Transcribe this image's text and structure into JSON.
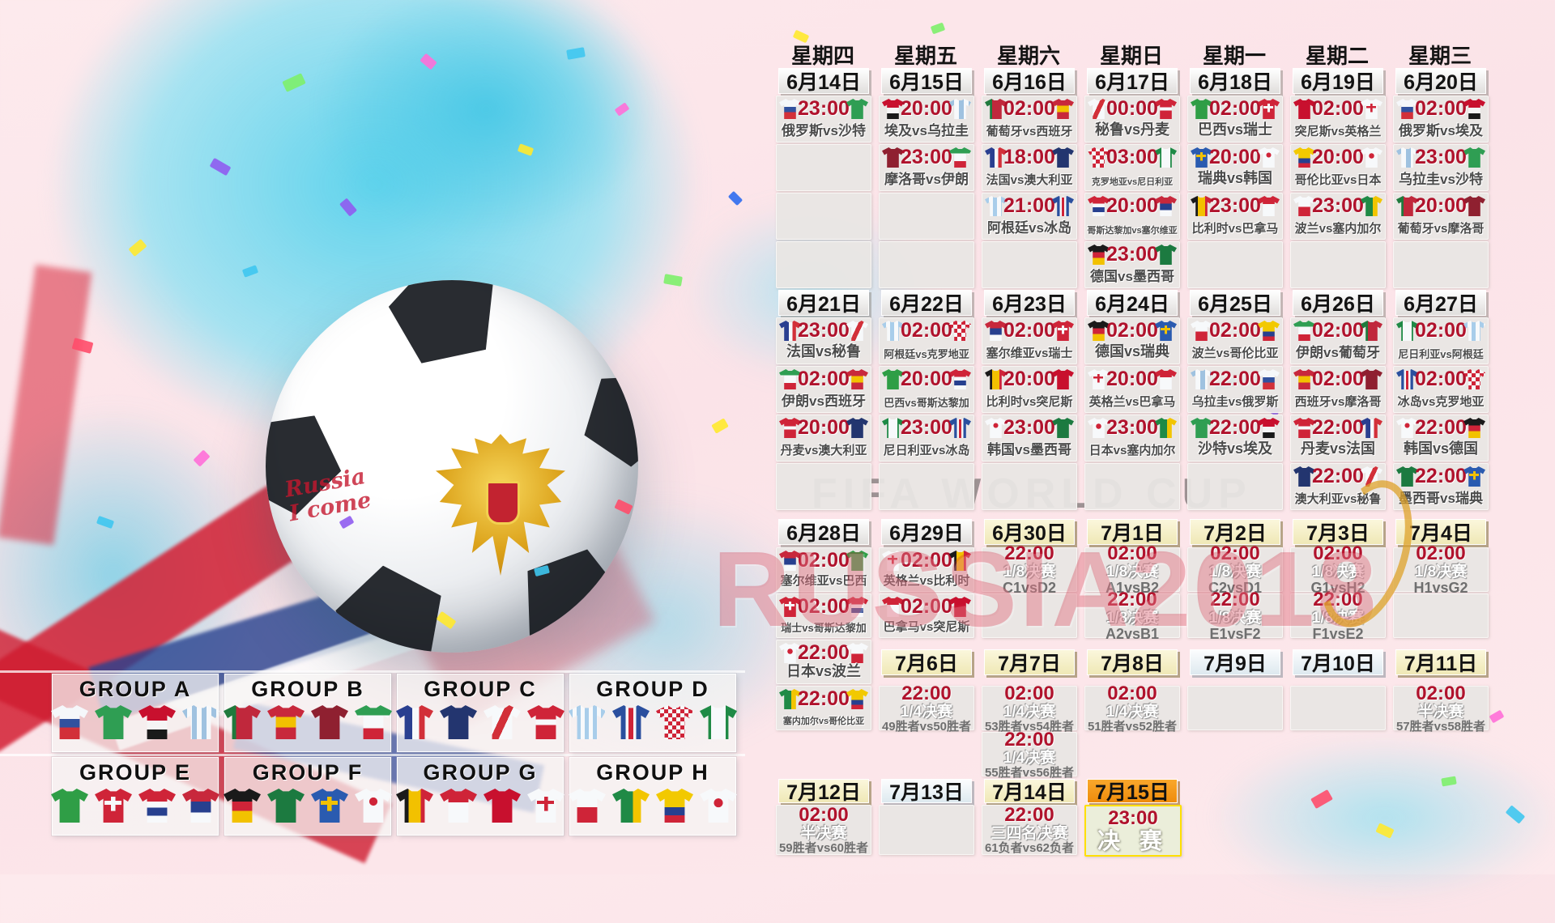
{
  "watermark": {
    "fifa": "FIFA WORLD CUP",
    "russia": "RUSSIA2018"
  },
  "artwork": {
    "ball_text_line1": "Russia",
    "ball_text_line2": "I come"
  },
  "colors": {
    "time_red": "#b0122c",
    "cell_bg": "#e9e6e3",
    "date_yellow": "#f4edc0",
    "date_final_orange": "#f39a1c",
    "confetti_palette": [
      "#ff6fd8",
      "#8f5cf0",
      "#3fc6f0",
      "#ffe92e",
      "#7df06a",
      "#ff4d6a",
      "#2e6cf0",
      "#ff9d2e"
    ]
  },
  "jerseys": {
    "russia": "linear-gradient(180deg,#f5f7fa 0 40%,#31519e 40% 66%,#d23039 66%)",
    "saudi": "#2f9e53",
    "egypt": "linear-gradient(180deg,#c8102e 0 45%,#f5f5f5 45% 72%,#1a1a1a 72%)",
    "uruguay": "repeating-linear-gradient(90deg,#9fc2e0 0 6px,#f7f9fb 6px 12px)",
    "portugal": "linear-gradient(90deg,#1f7a3d 0 34%,#c0283c 34%)",
    "spain": "linear-gradient(180deg,#c8283c 0 34%,#f2c100 34% 66%,#c8283c 66%)",
    "morocco": "#8f2030",
    "iran": "linear-gradient(180deg,#2f9e53 0 30%,#f7f9fb 30% 68%,#cf2438 68%)",
    "france": "linear-gradient(90deg,#2a3f90 0 44%,#f7f9fb 44% 62%,#d23039 62%)",
    "australia": "#23356f",
    "peru": "linear-gradient(115deg,#f7f9fb 0 42%,#d23039 42% 58%,#f7f9fb 58%)",
    "denmark": "linear-gradient(180deg,#cf2438 0 42%,#f7f9fb 42% 58%,#cf2438 58%)",
    "argentina": "repeating-linear-gradient(90deg,#a8cdea 0 5px,#f7f9fb 5px 10px)",
    "iceland": "linear-gradient(90deg,#2a4f9e 0 36%,#f7f9fb 36% 44%,#cf2438 44% 56%,#f7f9fb 56% 64%,#2a4f9e 64%)",
    "croatia": "conic-gradient(#cf2438 25%,#f7f9fb 0 50%,#cf2438 0 75%,#f7f9fb 0) 0 0/10px 10px",
    "nigeria": "linear-gradient(90deg,#1f8a46 0 30%,#f7f9fb 30% 70%,#1f8a46 70%)",
    "brazil": "#2f9e46",
    "switzerland": "linear-gradient(#f7f9fb,#f7f9fb) 50% 40%/46% 12% no-repeat,linear-gradient(#f7f9fb,#f7f9fb) 50% 40%/12% 42% no-repeat,#cf2438",
    "costarica": "linear-gradient(180deg,#cf2438 0 38%,#f7f9fb 38% 56%,#27408f 56% 80%,#f7f9fb 80%)",
    "serbia": "linear-gradient(180deg,#c8283c 0 38%,#27408f 38% 70%,#f7f9fb 70%)",
    "germany": "linear-gradient(180deg,#1a1a1a 0 38%,#cf2438 38% 66%,#f2c100 66%)",
    "mexico": "#1c7a40",
    "sweden": "linear-gradient(#f2c100,#f2c100) 50% 40%/46% 12% no-repeat,linear-gradient(#f2c100,#f2c100) 50% 40%/12% 42% no-repeat,#2a5bb0",
    "korea": "radial-gradient(circle at 50% 38%,#cf2438 0 14%,rgba(0,0,0,0) 15%),#f7f9fb",
    "belgium": "linear-gradient(90deg,#1a1a1a 0 34%,#f2c100 34% 66%,#cf2438 66%)",
    "panama": "linear-gradient(180deg,#cf2438 0 40%,#f7f9fb 40%)",
    "tunisia": "#c8102e",
    "england": "linear-gradient(#cf2438,#cf2438) 50% 40%/46% 10% no-repeat,linear-gradient(#cf2438,#cf2438) 50% 40%/10% 42% no-repeat,#f7f9fb",
    "poland": "linear-gradient(180deg,#f7f9fb 0 55%,#cf2438 55%)",
    "senegal": "linear-gradient(90deg,#1f8a46 0 55%,#f2c500 55%)",
    "colombia": "linear-gradient(180deg,#f2c900 0 55%,#27408f 55% 78%,#cf2438 78%)",
    "japan": "radial-gradient(circle at 50% 42%,#cf2438 0 16%,rgba(0,0,0,0) 17%),#f7f9fb"
  },
  "groups": [
    {
      "label": "GROUP A",
      "teams": [
        "russia",
        "saudi",
        "egypt",
        "uruguay"
      ]
    },
    {
      "label": "GROUP B",
      "teams": [
        "portugal",
        "spain",
        "morocco",
        "iran"
      ]
    },
    {
      "label": "GROUP C",
      "teams": [
        "france",
        "australia",
        "peru",
        "denmark"
      ]
    },
    {
      "label": "GROUP D",
      "teams": [
        "argentina",
        "iceland",
        "croatia",
        "nigeria"
      ]
    },
    {
      "label": "GROUP E",
      "teams": [
        "brazil",
        "switzerland",
        "costarica",
        "serbia"
      ]
    },
    {
      "label": "GROUP F",
      "teams": [
        "germany",
        "mexico",
        "sweden",
        "korea"
      ]
    },
    {
      "label": "GROUP G",
      "teams": [
        "belgium",
        "panama",
        "tunisia",
        "england"
      ]
    },
    {
      "label": "GROUP H",
      "teams": [
        "poland",
        "senegal",
        "colombia",
        "japan"
      ]
    }
  ],
  "calendar": {
    "weekdays": [
      "星期四",
      "星期五",
      "星期六",
      "星期日",
      "星期一",
      "星期二",
      "星期三"
    ],
    "rows": [
      {
        "kind": "weekdays"
      },
      {
        "kind": "dates",
        "cells": [
          {
            "label": "6月14日",
            "hl": "gray"
          },
          {
            "label": "6月15日",
            "hl": "gray"
          },
          {
            "label": "6月16日",
            "hl": "gray"
          },
          {
            "label": "6月17日",
            "hl": "gray"
          },
          {
            "label": "6月18日",
            "hl": "gray"
          },
          {
            "label": "6月19日",
            "hl": "gray"
          },
          {
            "label": "6月20日",
            "hl": "gray"
          }
        ]
      },
      {
        "kind": "cells",
        "cells": [
          {
            "t": "m",
            "time": "23:00",
            "teams": "俄罗斯vs沙特",
            "h": "russia",
            "a": "saudi"
          },
          {
            "t": "m",
            "time": "20:00",
            "teams": "埃及vs乌拉圭",
            "h": "egypt",
            "a": "uruguay"
          },
          {
            "t": "m",
            "time": "02:00",
            "teams": "葡萄牙vs西班牙",
            "h": "portugal",
            "a": "spain"
          },
          {
            "t": "m",
            "time": "00:00",
            "teams": "秘鲁vs丹麦",
            "h": "peru",
            "a": "denmark"
          },
          {
            "t": "m",
            "time": "02:00",
            "teams": "巴西vs瑞士",
            "h": "brazil",
            "a": "switzerland"
          },
          {
            "t": "m",
            "time": "02:00",
            "teams": "突尼斯vs英格兰",
            "h": "tunisia",
            "a": "england"
          },
          {
            "t": "m",
            "time": "02:00",
            "teams": "俄罗斯vs埃及",
            "h": "russia",
            "a": "egypt"
          }
        ]
      },
      {
        "kind": "cells",
        "cells": [
          {
            "t": "e"
          },
          {
            "t": "m",
            "time": "23:00",
            "teams": "摩洛哥vs伊朗",
            "h": "morocco",
            "a": "iran"
          },
          {
            "t": "m",
            "time": "18:00",
            "teams": "法国vs澳大利亚",
            "h": "france",
            "a": "australia"
          },
          {
            "t": "m",
            "time": "03:00",
            "teams": "克罗地亚vs尼日利亚",
            "h": "croatia",
            "a": "nigeria"
          },
          {
            "t": "m",
            "time": "20:00",
            "teams": "瑞典vs韩国",
            "h": "sweden",
            "a": "korea"
          },
          {
            "t": "m",
            "time": "20:00",
            "teams": "哥伦比亚vs日本",
            "h": "colombia",
            "a": "japan"
          },
          {
            "t": "m",
            "time": "23:00",
            "teams": "乌拉圭vs沙特",
            "h": "uruguay",
            "a": "saudi"
          }
        ]
      },
      {
        "kind": "cells",
        "cells": [
          {
            "t": "e"
          },
          {
            "t": "e"
          },
          {
            "t": "m",
            "time": "21:00",
            "teams": "阿根廷vs冰岛",
            "h": "argentina",
            "a": "iceland"
          },
          {
            "t": "m",
            "time": "20:00",
            "teams": "哥斯达黎加vs塞尔维亚",
            "h": "costarica",
            "a": "serbia"
          },
          {
            "t": "m",
            "time": "23:00",
            "teams": "比利时vs巴拿马",
            "h": "belgium",
            "a": "panama"
          },
          {
            "t": "m",
            "time": "23:00",
            "teams": "波兰vs塞内加尔",
            "h": "poland",
            "a": "senegal"
          },
          {
            "t": "m",
            "time": "20:00",
            "teams": "葡萄牙vs摩洛哥",
            "h": "portugal",
            "a": "morocco"
          }
        ]
      },
      {
        "kind": "cells",
        "cells": [
          {
            "t": "e"
          },
          {
            "t": "e"
          },
          {
            "t": "e"
          },
          {
            "t": "m",
            "time": "23:00",
            "teams": "德国vs墨西哥",
            "h": "germany",
            "a": "mexico"
          },
          {
            "t": "e"
          },
          {
            "t": "e"
          },
          {
            "t": "e"
          }
        ]
      },
      {
        "kind": "dates",
        "cells": [
          {
            "label": "6月21日",
            "hl": "gray"
          },
          {
            "label": "6月22日",
            "hl": "gray"
          },
          {
            "label": "6月23日",
            "hl": "gray"
          },
          {
            "label": "6月24日",
            "hl": "gray"
          },
          {
            "label": "6月25日",
            "hl": "gray"
          },
          {
            "label": "6月26日",
            "hl": "gray"
          },
          {
            "label": "6月27日",
            "hl": "gray"
          }
        ]
      },
      {
        "kind": "cells",
        "cells": [
          {
            "t": "m",
            "time": "23:00",
            "teams": "法国vs秘鲁",
            "h": "france",
            "a": "peru"
          },
          {
            "t": "m",
            "time": "02:00",
            "teams": "阿根廷vs克罗地亚",
            "h": "argentina",
            "a": "croatia"
          },
          {
            "t": "m",
            "time": "02:00",
            "teams": "塞尔维亚vs瑞士",
            "h": "serbia",
            "a": "switzerland"
          },
          {
            "t": "m",
            "time": "02:00",
            "teams": "德国vs瑞典",
            "h": "germany",
            "a": "sweden"
          },
          {
            "t": "m",
            "time": "02:00",
            "teams": "波兰vs哥伦比亚",
            "h": "poland",
            "a": "colombia"
          },
          {
            "t": "m",
            "time": "02:00",
            "teams": "伊朗vs葡萄牙",
            "h": "iran",
            "a": "portugal"
          },
          {
            "t": "m",
            "time": "02:00",
            "teams": "尼日利亚vs阿根廷",
            "h": "nigeria",
            "a": "argentina"
          }
        ]
      },
      {
        "kind": "cells",
        "cells": [
          {
            "t": "m",
            "time": "02:00",
            "teams": "伊朗vs西班牙",
            "h": "iran",
            "a": "spain"
          },
          {
            "t": "m",
            "time": "20:00",
            "teams": "巴西vs哥斯达黎加",
            "h": "brazil",
            "a": "costarica"
          },
          {
            "t": "m",
            "time": "20:00",
            "teams": "比利时vs突尼斯",
            "h": "belgium",
            "a": "tunisia"
          },
          {
            "t": "m",
            "time": "20:00",
            "teams": "英格兰vs巴拿马",
            "h": "england",
            "a": "panama"
          },
          {
            "t": "m",
            "time": "22:00",
            "teams": "乌拉圭vs俄罗斯",
            "h": "uruguay",
            "a": "russia"
          },
          {
            "t": "m",
            "time": "02:00",
            "teams": "西班牙vs摩洛哥",
            "h": "spain",
            "a": "morocco"
          },
          {
            "t": "m",
            "time": "02:00",
            "teams": "冰岛vs克罗地亚",
            "h": "iceland",
            "a": "croatia"
          }
        ]
      },
      {
        "kind": "cells",
        "cells": [
          {
            "t": "m",
            "time": "20:00",
            "teams": "丹麦vs澳大利亚",
            "h": "denmark",
            "a": "australia"
          },
          {
            "t": "m",
            "time": "23:00",
            "teams": "尼日利亚vs冰岛",
            "h": "nigeria",
            "a": "iceland"
          },
          {
            "t": "m",
            "time": "23:00",
            "teams": "韩国vs墨西哥",
            "h": "korea",
            "a": "mexico"
          },
          {
            "t": "m",
            "time": "23:00",
            "teams": "日本vs塞内加尔",
            "h": "japan",
            "a": "senegal"
          },
          {
            "t": "m",
            "time": "22:00",
            "teams": "沙特vs埃及",
            "h": "saudi",
            "a": "egypt"
          },
          {
            "t": "m",
            "time": "22:00",
            "teams": "丹麦vs法国",
            "h": "denmark",
            "a": "france"
          },
          {
            "t": "m",
            "time": "22:00",
            "teams": "韩国vs德国",
            "h": "korea",
            "a": "germany"
          }
        ]
      },
      {
        "kind": "cells",
        "cells": [
          {
            "t": "e"
          },
          {
            "t": "e"
          },
          {
            "t": "e"
          },
          {
            "t": "e"
          },
          {
            "t": "e"
          },
          {
            "t": "m",
            "time": "22:00",
            "teams": "澳大利亚vs秘鲁",
            "h": "australia",
            "a": "peru"
          },
          {
            "t": "m",
            "time": "22:00",
            "teams": "墨西哥vs瑞典",
            "h": "mexico",
            "a": "sweden"
          }
        ]
      },
      {
        "kind": "dates",
        "cells": [
          {
            "label": "6月28日",
            "hl": "gray"
          },
          {
            "label": "6月29日",
            "hl": "gray"
          },
          {
            "label": "6月30日",
            "hl": "yellow"
          },
          {
            "label": "7月1日",
            "hl": "yellow"
          },
          {
            "label": "7月2日",
            "hl": "yellow"
          },
          {
            "label": "7月3日",
            "hl": "yellow"
          },
          {
            "label": "7月4日",
            "hl": "yellow"
          }
        ]
      },
      {
        "kind": "cells",
        "cells": [
          {
            "t": "m",
            "time": "02:00",
            "teams": "塞尔维亚vs巴西",
            "h": "serbia",
            "a": "brazil"
          },
          {
            "t": "m",
            "time": "02:00",
            "teams": "英格兰vs比利时",
            "h": "england",
            "a": "belgium"
          },
          {
            "t": "k",
            "time": "22:00",
            "stage": "1/8决赛",
            "pair": "C1vsD2"
          },
          {
            "t": "k",
            "time": "02:00",
            "stage": "1/8决赛",
            "pair": "A1vsB2"
          },
          {
            "t": "k",
            "time": "02:00",
            "stage": "1/8决赛",
            "pair": "C2vsD1"
          },
          {
            "t": "k",
            "time": "02:00",
            "stage": "1/8决赛",
            "pair": "G1vsH2"
          },
          {
            "t": "k",
            "time": "02:00",
            "stage": "1/8决赛",
            "pair": "H1vsG2"
          }
        ]
      },
      {
        "kind": "cells",
        "cells": [
          {
            "t": "m",
            "time": "02:00",
            "teams": "瑞士vs哥斯达黎加",
            "h": "switzerland",
            "a": "costarica"
          },
          {
            "t": "m",
            "time": "02:00",
            "teams": "巴拿马vs突尼斯",
            "h": "panama",
            "a": "tunisia"
          },
          {
            "t": "e"
          },
          {
            "t": "k",
            "time": "22:00",
            "stage": "1/8决赛",
            "pair": "A2vsB1"
          },
          {
            "t": "k",
            "time": "22:00",
            "stage": "1/8决赛",
            "pair": "E1vsF2"
          },
          {
            "t": "k",
            "time": "22:00",
            "stage": "1/8决赛",
            "pair": "F1vsE2"
          },
          {
            "t": "e"
          }
        ]
      },
      {
        "kind": "cells",
        "cells": [
          {
            "t": "m",
            "time": "22:00",
            "teams": "日本vs波兰",
            "h": "japan",
            "a": "poland"
          },
          {
            "t": "d",
            "label": "7月6日",
            "hl": "yellow"
          },
          {
            "t": "d",
            "label": "7月7日",
            "hl": "yellow"
          },
          {
            "t": "d",
            "label": "7月8日",
            "hl": "yellow"
          },
          {
            "t": "d",
            "label": "7月9日",
            "hl": "rest"
          },
          {
            "t": "d",
            "label": "7月10日",
            "hl": "rest"
          },
          {
            "t": "d",
            "label": "7月11日",
            "hl": "yellow"
          }
        ]
      },
      {
        "kind": "cells",
        "cells": [
          {
            "t": "m",
            "time": "22:00",
            "teams": "塞内加尔vs哥伦比亚",
            "h": "senegal",
            "a": "colombia"
          },
          {
            "t": "k",
            "time": "22:00",
            "stage": "1/4决赛",
            "pair": "49胜者vs50胜者"
          },
          {
            "t": "k",
            "time": "02:00",
            "stage": "1/4决赛",
            "pair": "53胜者vs54胜者"
          },
          {
            "t": "k",
            "time": "02:00",
            "stage": "1/4决赛",
            "pair": "51胜者vs52胜者"
          },
          {
            "t": "e"
          },
          {
            "t": "e"
          },
          {
            "t": "k",
            "time": "02:00",
            "stage": "半决赛",
            "pair": "57胜者vs58胜者"
          }
        ]
      },
      {
        "kind": "cells",
        "cells": [
          null,
          null,
          {
            "t": "k",
            "time": "22:00",
            "stage": "1/4决赛",
            "pair": "55胜者vs56胜者"
          },
          null,
          null,
          null,
          null
        ]
      },
      {
        "kind": "dates",
        "cells": [
          {
            "label": "7月12日",
            "hl": "yellow"
          },
          {
            "label": "7月13日",
            "hl": "rest"
          },
          {
            "label": "7月14日",
            "hl": "yellow"
          },
          {
            "label": "7月15日",
            "hl": "final"
          },
          null,
          null,
          null
        ]
      },
      {
        "kind": "cells",
        "cells": [
          {
            "t": "k",
            "time": "02:00",
            "stage": "半决赛",
            "pair": "59胜者vs60胜者"
          },
          {
            "t": "e"
          },
          {
            "t": "k",
            "time": "22:00",
            "stage": "三四名决赛",
            "pair": "61负者vs62负者"
          },
          {
            "t": "f",
            "time": "23:00",
            "label": "决 赛"
          },
          null,
          null,
          null
        ]
      }
    ]
  }
}
